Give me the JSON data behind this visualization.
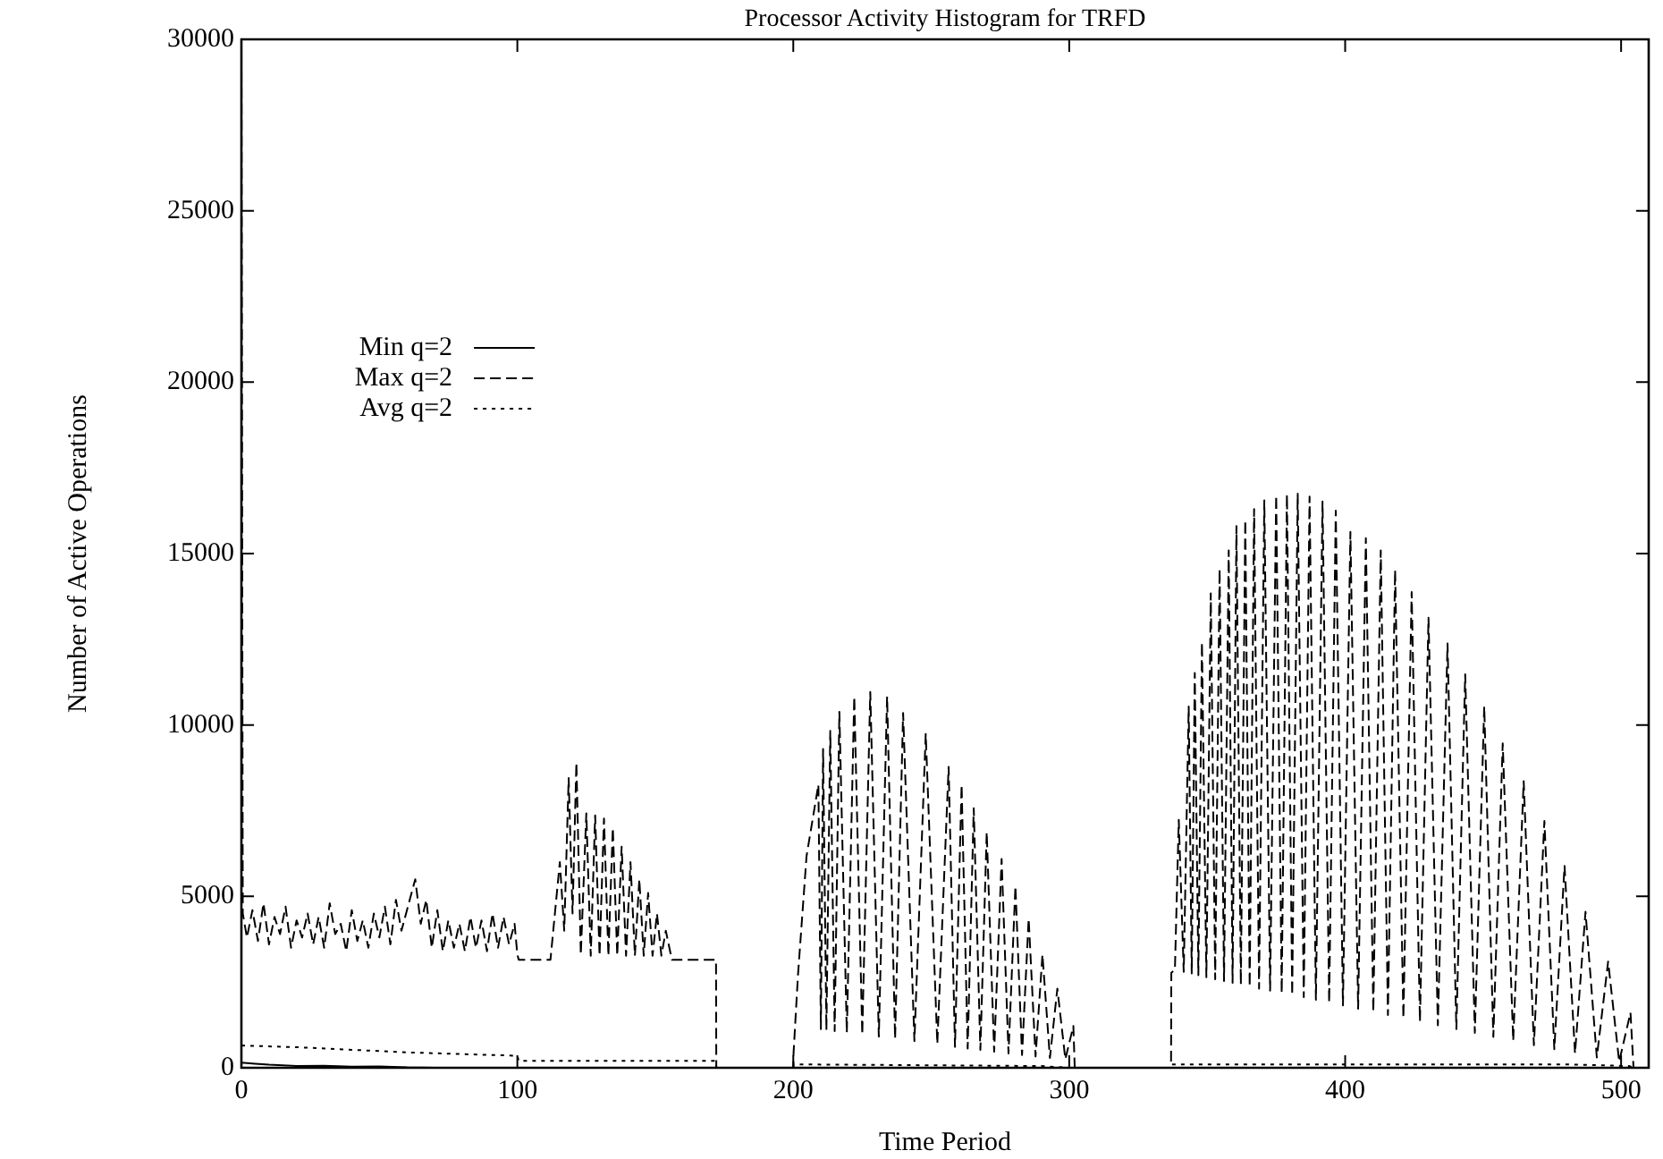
{
  "chart_data": {
    "type": "line",
    "title": "Processor Activity Histogram for TRFD",
    "xlabel": "Time Period",
    "ylabel": "Number of Active Operations",
    "xlim": [
      0,
      510
    ],
    "xticks": [
      0,
      100,
      200,
      300,
      400,
      500
    ],
    "ylim": [
      0,
      30000
    ],
    "yticks": [
      0,
      5000,
      10000,
      15000,
      20000,
      25000,
      30000
    ],
    "grid": false,
    "legend": "top left",
    "series": [
      {
        "name": "Min q=2",
        "color": "#000000",
        "line_style": "solid",
        "x": [
          0,
          5,
          10,
          20,
          30,
          40,
          50,
          60,
          70,
          510
        ],
        "values": [
          150,
          120,
          90,
          50,
          60,
          30,
          40,
          10,
          0,
          0
        ]
      },
      {
        "name": "Max q=2",
        "color": "#000000",
        "line_style": "dashed",
        "x": [
          0,
          0.5,
          2,
          4,
          6,
          8,
          10,
          12,
          14,
          16,
          18,
          20,
          22,
          24,
          26,
          28,
          30,
          32,
          34,
          36,
          38,
          40,
          42,
          44,
          46,
          48,
          50,
          52,
          54,
          56,
          58,
          60,
          63,
          65,
          67,
          69,
          71,
          73,
          75,
          77,
          79,
          81,
          83,
          85,
          87,
          89,
          91,
          93,
          95,
          97,
          99,
          100,
          100.5,
          112,
          115.4,
          117,
          118.6,
          120,
          121.4,
          123,
          125,
          126.6,
          128.2,
          129.8,
          131.4,
          133,
          134.6,
          136.2,
          137.8,
          139.4,
          141,
          142.6,
          144.2,
          145.8,
          147.4,
          149,
          150.6,
          152.2,
          153.8,
          156,
          172,
          172.1,
          200,
          200.1,
          201.7,
          204.8,
          209.1,
          210,
          210.8,
          212,
          213.4,
          215,
          216.7,
          219.4,
          222.1,
          225,
          227.9,
          231,
          234,
          236.9,
          239.8,
          243.9,
          248,
          252.2,
          256.3,
          258.6,
          261,
          263.2,
          265.4,
          267.8,
          270.1,
          272.8,
          275.5,
          278,
          280.5,
          282.9,
          285.3,
          287.8,
          290.3,
          293,
          295.7,
          298.6,
          301.5,
          302,
          336.9,
          337,
          338.3,
          339.7,
          341.5,
          343.3,
          344.4,
          345.5,
          346.8,
          348.1,
          349.7,
          351.3,
          352.9,
          354.5,
          356.1,
          357.8,
          359.2,
          360.6,
          362.2,
          363.8,
          365.4,
          367,
          368.8,
          370.7,
          372.8,
          375,
          377,
          378.9,
          380.8,
          382.8,
          385,
          387.1,
          389.4,
          391.8,
          394.2,
          396.6,
          399.2,
          401.9,
          404.7,
          407.5,
          410.2,
          412.9,
          415.5,
          418.1,
          421.1,
          424.1,
          427.1,
          430.2,
          433.6,
          437.1,
          440.3,
          443.5,
          447,
          450.4,
          453.7,
          457.1,
          460.9,
          464.7,
          468.4,
          472.2,
          475.8,
          479.5,
          483.3,
          487.1,
          491.2,
          495.3,
          499.3,
          503.4,
          504.5,
          510
        ],
        "values": [
          30000,
          4500,
          3800,
          4600,
          3700,
          4800,
          3600,
          4400,
          3900,
          4700,
          3500,
          4300,
          3800,
          4500,
          3600,
          4400,
          3500,
          4800,
          3900,
          4200,
          3400,
          4600,
          3700,
          4300,
          3500,
          4500,
          3800,
          4700,
          3600,
          4900,
          4000,
          4600,
          5500,
          4200,
          4900,
          3500,
          4600,
          3400,
          4300,
          3500,
          4200,
          3400,
          4400,
          3500,
          4300,
          3400,
          4500,
          3500,
          4400,
          3600,
          4200,
          3300,
          3150,
          3150,
          6000,
          4000,
          8450,
          4500,
          8900,
          3300,
          7420,
          3270,
          7360,
          3270,
          7270,
          3270,
          7000,
          3270,
          6450,
          3270,
          6000,
          3270,
          5500,
          3270,
          5100,
          3270,
          4500,
          3270,
          4000,
          3150,
          3150,
          0,
          0,
          430,
          2700,
          6170,
          8260,
          1130,
          9300,
          1100,
          9830,
          1070,
          10380,
          1030,
          10830,
          970,
          10960,
          910,
          10830,
          850,
          10350,
          780,
          9740,
          700,
          8780,
          610,
          8260,
          560,
          7570,
          520,
          6870,
          470,
          6090,
          420,
          5300,
          370,
          4350,
          330,
          3300,
          290,
          2310,
          250,
          1220,
          0,
          0,
          2770,
          2860,
          7230,
          2800,
          10540,
          2750,
          11520,
          2700,
          12410,
          2640,
          13840,
          2580,
          14550,
          2530,
          15090,
          2480,
          15800,
          2430,
          15980,
          2370,
          16300,
          2310,
          16550,
          2250,
          16700,
          2180,
          16730,
          2120,
          16750,
          2060,
          16660,
          1980,
          16520,
          1900,
          16250,
          1820,
          15630,
          1720,
          15450,
          1630,
          15090,
          1540,
          14520,
          1450,
          13880,
          1350,
          13130,
          1240,
          12380,
          1130,
          11480,
          1020,
          10540,
          900,
          9460,
          790,
          8360,
          660,
          7200,
          540,
          5890,
          420,
          4550,
          300,
          3100,
          180,
          1610,
          0,
          0
        ]
      },
      {
        "name": "Avg q=2",
        "color": "#000000",
        "line_style": "dotted",
        "x": [
          0,
          20,
          60,
          100,
          100.5,
          172,
          172.1,
          200,
          200.1,
          290,
          300,
          336.9,
          337,
          480,
          503,
          504.5,
          510
        ],
        "values": [
          650,
          600,
          450,
          350,
          200,
          200,
          0,
          0,
          100,
          50,
          0,
          0,
          100,
          100,
          50,
          0,
          0
        ]
      }
    ]
  }
}
